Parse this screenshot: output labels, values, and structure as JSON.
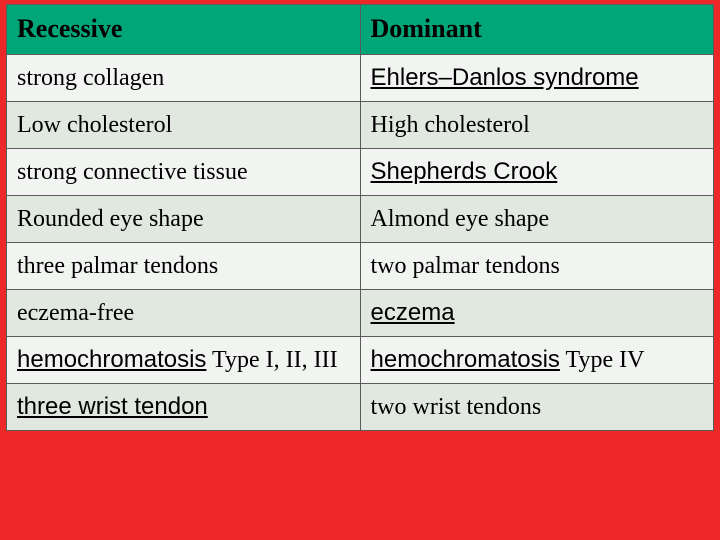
{
  "table": {
    "background_color": "#ee2828",
    "header_bg": "#00a578",
    "row_odd_bg": "#f1f4f1",
    "row_even_bg": "#e0e8e0",
    "border_color": "#5a5a5a",
    "font_serif": "Times New Roman",
    "font_sans": "Arial",
    "header_fontsize": 26,
    "cell_fontsize": 24,
    "columns": [
      "Recessive",
      "Dominant"
    ],
    "rows": [
      {
        "recessive": "strong collagen",
        "dominant_link": "Ehlers–Danlos syndrome"
      },
      {
        "recessive": "Low cholesterol",
        "dominant": "High cholesterol"
      },
      {
        "recessive": "strong connective tissue",
        "dominant_link": "Shepherds Crook"
      },
      {
        "recessive": "Rounded eye shape",
        "dominant": "Almond eye shape"
      },
      {
        "recessive": "three palmar tendons",
        "dominant": "two palmar tendons"
      },
      {
        "recessive": "eczema-free",
        "dominant_link": "eczema"
      },
      {
        "recessive_link": "hemochromatosis",
        "recessive_tail": " Type I, II, III",
        "dominant_link": "hemochromatosis",
        "dominant_tail": " Type IV"
      },
      {
        "recessive_link": "three wrist tendon",
        "dominant": "two wrist tendons"
      }
    ]
  }
}
